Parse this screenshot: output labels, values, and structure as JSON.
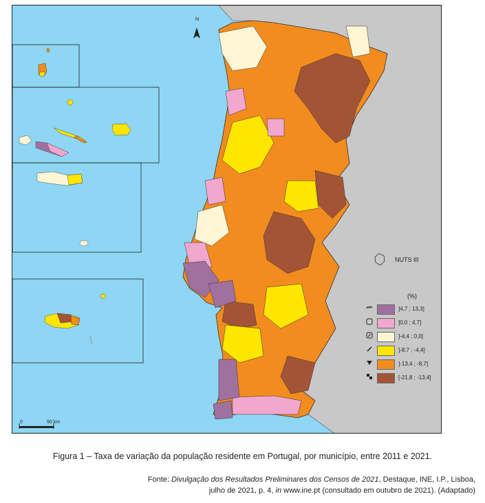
{
  "map": {
    "north_label": "N",
    "nuts_label": "NUTS III",
    "scale": {
      "zero": "0",
      "distance": "50 km"
    },
    "colors": {
      "sea": "#8ed6f4",
      "spain": "#c8c8c8",
      "c_plus_high": "#a0709f",
      "c_plus_low": "#f2a7cf",
      "c_minus_low": "#fff6d5",
      "c_minus_mid": "#ffe600",
      "c_minus_high": "#f28c1e",
      "c_minus_max": "#a35437"
    },
    "icons": [
      "north-arrow-icon",
      "nuts-region-icon",
      "scale-bar-icon"
    ]
  },
  "legend": {
    "unit": "(%)",
    "classes": [
      {
        "label": "]4,7 ; 13,3]",
        "color": "#a0709f",
        "icon": "region-symbol-icon"
      },
      {
        "label": "]0,0 ; 4,7]",
        "color": "#f2a7cf",
        "icon": "region-symbol-icon"
      },
      {
        "label": "]-4,4 ; 0,0]",
        "color": "#fff6d5",
        "icon": "region-symbol-icon"
      },
      {
        "label": "]-8,7 ; -4,4]",
        "color": "#ffe600",
        "icon": "region-symbol-icon"
      },
      {
        "label": "]-13,4 ; -8,7]",
        "color": "#f28c1e",
        "icon": "region-symbol-icon"
      },
      {
        "label": "[-21,8 ; -13,4]",
        "color": "#a35437",
        "icon": "region-symbol-icon"
      }
    ]
  },
  "caption": "Figura 1 – Taxa de variação da população residente em Portugal, por município, entre 2011 e 2021.",
  "source": {
    "prefix": "Fonte: ",
    "title": "Divulgação dos Resultados Preliminares dos Censos de 2021",
    "rest": ", Destaque, INE, I.P., Lisboa,",
    "line2_a": "julho de 2021, p. 4, ",
    "line2_in": "in",
    "line2_b": " www.ine.pt (consultado em outubro de 2021). (Adaptado)"
  }
}
